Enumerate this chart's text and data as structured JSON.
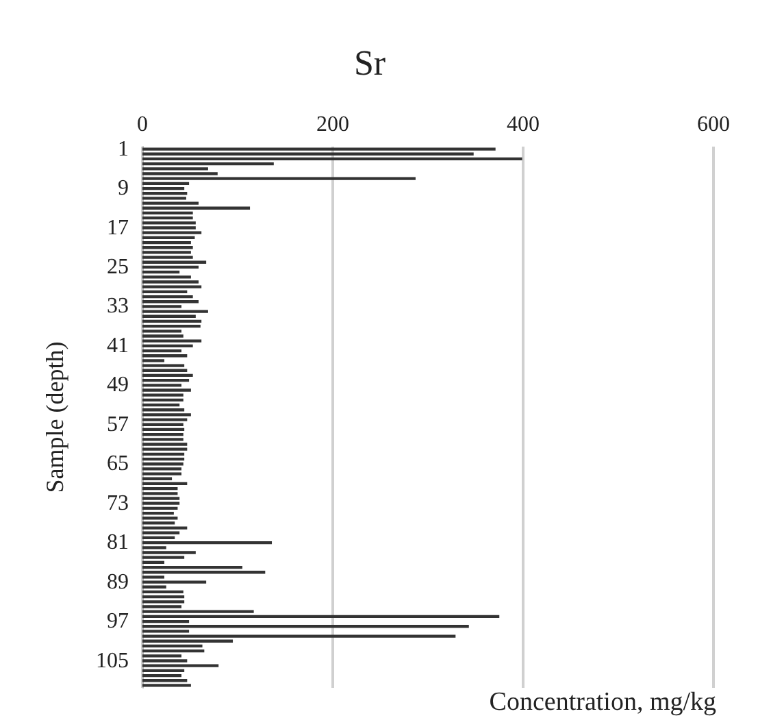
{
  "chart_data": {
    "type": "bar",
    "orientation": "horizontal",
    "title": "Sr",
    "xlabel": "Concentration, mg/kg",
    "ylabel": "Sample (depth)",
    "categories": [
      "1",
      null,
      null,
      null,
      null,
      null,
      null,
      null,
      "9",
      null,
      null,
      null,
      null,
      null,
      null,
      null,
      "17",
      null,
      null,
      null,
      null,
      null,
      null,
      null,
      "25",
      null,
      null,
      null,
      null,
      null,
      null,
      null,
      "33",
      null,
      null,
      null,
      null,
      null,
      null,
      null,
      "41",
      null,
      null,
      null,
      null,
      null,
      null,
      null,
      "49",
      null,
      null,
      null,
      null,
      null,
      null,
      null,
      "57",
      null,
      null,
      null,
      null,
      null,
      null,
      null,
      "65",
      null,
      null,
      null,
      null,
      null,
      null,
      null,
      "73",
      null,
      null,
      null,
      null,
      null,
      null,
      null,
      "81",
      null,
      null,
      null,
      null,
      null,
      null,
      null,
      "89",
      null,
      null,
      null,
      null,
      null,
      null,
      null,
      "97",
      null,
      null,
      null,
      null,
      null,
      null,
      null,
      "105",
      null,
      null,
      null,
      null,
      null
    ],
    "values": [
      371,
      348,
      399,
      138,
      69,
      79,
      287,
      49,
      44,
      47,
      46,
      59,
      113,
      53,
      53,
      56,
      56,
      62,
      55,
      51,
      53,
      51,
      53,
      67,
      59,
      39,
      51,
      59,
      62,
      47,
      53,
      59,
      41,
      69,
      56,
      62,
      61,
      41,
      43,
      62,
      53,
      41,
      47,
      23,
      44,
      47,
      53,
      49,
      41,
      51,
      43,
      43,
      39,
      44,
      51,
      47,
      43,
      44,
      43,
      43,
      47,
      47,
      44,
      44,
      43,
      41,
      41,
      31,
      47,
      37,
      37,
      39,
      39,
      37,
      33,
      37,
      34,
      47,
      39,
      34,
      136,
      25,
      56,
      44,
      23,
      105,
      129,
      23,
      67,
      25,
      43,
      44,
      44,
      41,
      117,
      375,
      49,
      343,
      49,
      329,
      95,
      63,
      65,
      41,
      47,
      80,
      44,
      41,
      47,
      51
    ],
    "color": "#333333",
    "xlim": [
      0,
      600
    ],
    "xticks": [
      0,
      200,
      400,
      600
    ],
    "grid": "x"
  }
}
